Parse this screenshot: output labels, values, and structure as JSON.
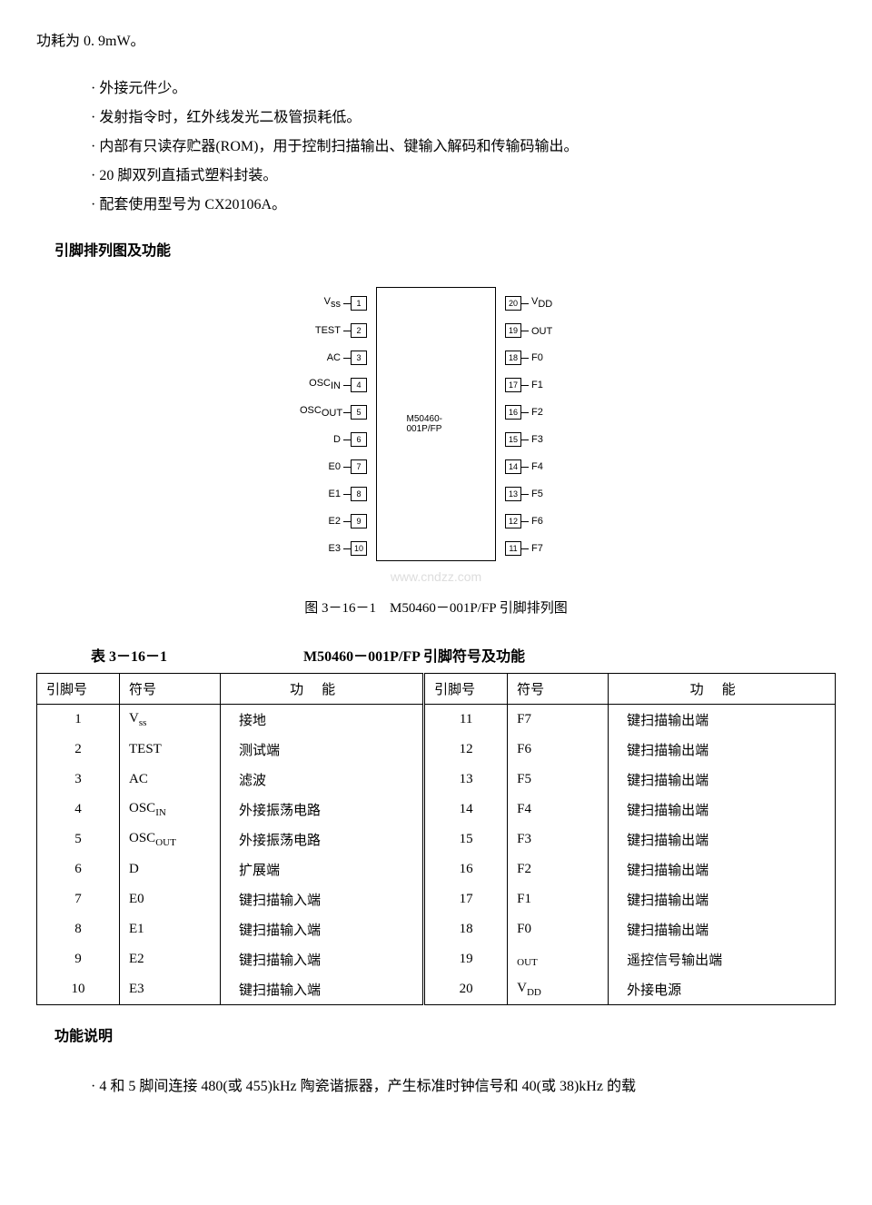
{
  "intro": "功耗为 0. 9mW。",
  "bullets": [
    "外接元件少。",
    "发射指令时，红外线发光二极管损耗低。",
    "内部有只读存贮器(ROM)，用于控制扫描输出、键输入解码和传输码输出。",
    "20 脚双列直插式塑料封装。",
    "配套使用型号为 CX20106A。"
  ],
  "section1": "引脚排列图及功能",
  "chip": {
    "name": "M50460-001P/FP",
    "left": [
      {
        "label": "Vss",
        "num": "1"
      },
      {
        "label": "TEST",
        "num": "2"
      },
      {
        "label": "AC",
        "num": "3"
      },
      {
        "label": "OSCIN",
        "num": "4"
      },
      {
        "label": "OSCOUT",
        "num": "5"
      },
      {
        "label": "D",
        "num": "6"
      },
      {
        "label": "E0",
        "num": "7"
      },
      {
        "label": "E1",
        "num": "8"
      },
      {
        "label": "E2",
        "num": "9"
      },
      {
        "label": "E3",
        "num": "10"
      }
    ],
    "right": [
      {
        "label": "VDD",
        "num": "20"
      },
      {
        "label": "OUT",
        "num": "19"
      },
      {
        "label": "F0",
        "num": "18"
      },
      {
        "label": "F1",
        "num": "17"
      },
      {
        "label": "F2",
        "num": "16"
      },
      {
        "label": "F3",
        "num": "15"
      },
      {
        "label": "F4",
        "num": "14"
      },
      {
        "label": "F5",
        "num": "13"
      },
      {
        "label": "F6",
        "num": "12"
      },
      {
        "label": "F7",
        "num": "11"
      }
    ]
  },
  "fig_caption": "图 3－16－1　M50460－001P/FP 引脚排列图",
  "table": {
    "num": "表 3－16－1",
    "title": "M50460－001P/FP 引脚符号及功能",
    "headers": [
      "引脚号",
      "符号",
      "功能",
      "引脚号",
      "符号",
      "功能"
    ],
    "rows": [
      [
        "1",
        "Vss",
        "接地",
        "11",
        "F7",
        "键扫描输出端"
      ],
      [
        "2",
        "TEST",
        "测试端",
        "12",
        "F6",
        "键扫描输出端"
      ],
      [
        "3",
        "AC",
        "滤波",
        "13",
        "F5",
        "键扫描输出端"
      ],
      [
        "4",
        "OSCIN",
        "外接振荡电路",
        "14",
        "F4",
        "键扫描输出端"
      ],
      [
        "5",
        "OSCOUT",
        "外接振荡电路",
        "15",
        "F3",
        "键扫描输出端"
      ],
      [
        "6",
        "D",
        "扩展端",
        "16",
        "F2",
        "键扫描输出端"
      ],
      [
        "7",
        "E0",
        "键扫描输入端",
        "17",
        "F1",
        "键扫描输出端"
      ],
      [
        "8",
        "E1",
        "键扫描输入端",
        "18",
        "F0",
        "键扫描输出端"
      ],
      [
        "9",
        "E2",
        "键扫描输入端",
        "19",
        "OUT",
        "遥控信号输出端"
      ],
      [
        "10",
        "E3",
        "键扫描输入端",
        "20",
        "VDD",
        "外接电源"
      ]
    ]
  },
  "section2": "功能说明",
  "footer_bullet": "4 和 5 脚间连接 480(或 455)kHz 陶瓷谐振器，产生标准时钟信号和 40(或 38)kHz 的载",
  "watermark": "www.cndzz.com"
}
